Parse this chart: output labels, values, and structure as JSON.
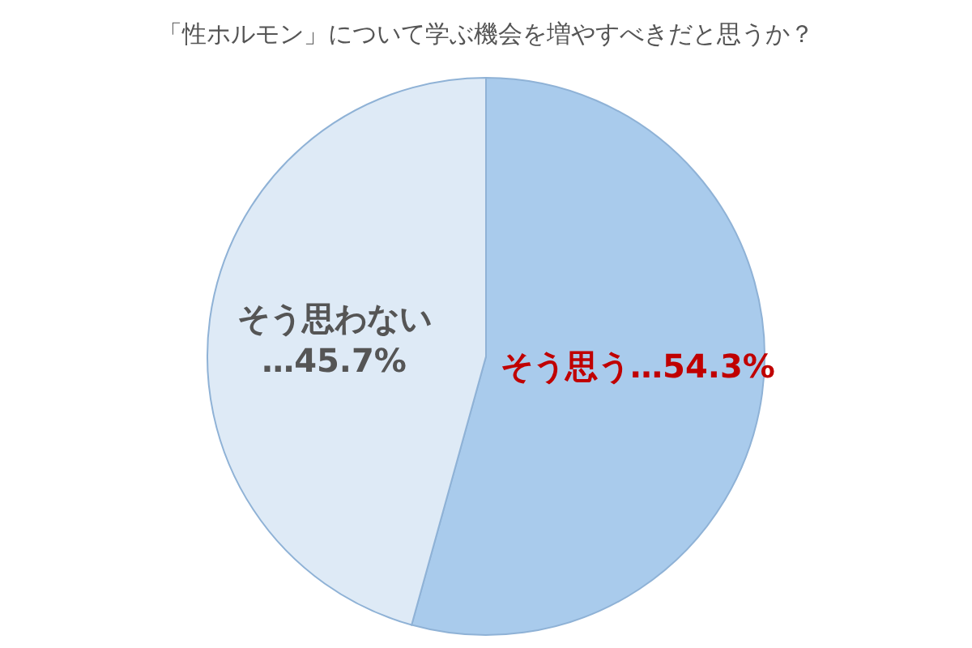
{
  "chart_data": {
    "type": "pie",
    "title": "「性ホルモン」について学ぶ機会を増やすべきだと思うか？",
    "categories": [
      "そう思う",
      "そう思わない"
    ],
    "values": [
      54.3,
      45.7
    ],
    "colors": [
      "#a9cbec",
      "#deeaf6"
    ],
    "value_labels": [
      "…54.3%",
      "…45.7%"
    ]
  }
}
